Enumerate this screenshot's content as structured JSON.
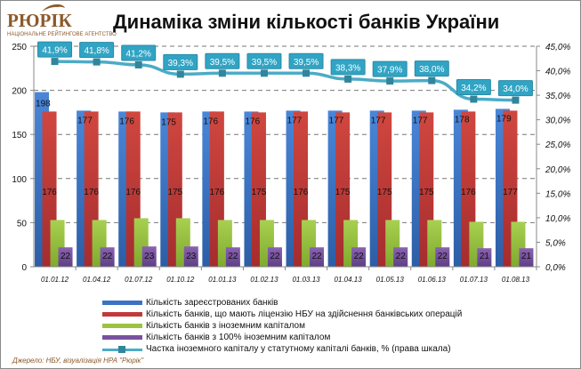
{
  "logo": {
    "name": "РЮРІК",
    "subtitle": "НАЦІОНАЛЬНЕ РЕЙТИНГОВЕ АГЕНТСТВО"
  },
  "source": "Джерело:  НБУ,  візуалізація НРА  \"Рюрік\"",
  "colors": {
    "blue": "#3b73c4",
    "red": "#c0393b",
    "green": "#9bc341",
    "purple": "#7a519f",
    "line": "#4bacc6",
    "label_box": "#31a4c4",
    "logo": "#8c5a2b"
  },
  "chart_data": {
    "type": "bar",
    "title": "Динаміка зміни кількості банків України",
    "categories": [
      "01.01.12",
      "01.04.12",
      "01.07.12",
      "01.10.12",
      "01.01.13",
      "01.02.13",
      "01.03.13",
      "01.04.13",
      "01.05.13",
      "01.06.13",
      "01.07.13",
      "01.08.13"
    ],
    "left_axis": {
      "ylim": [
        0,
        250
      ],
      "ticks": [
        "0",
        "50",
        "100",
        "150",
        "200",
        "250"
      ]
    },
    "right_axis": {
      "ylim": [
        0,
        45
      ],
      "ticks": [
        "0,0%",
        "5,0%",
        "10,0%",
        "15,0%",
        "20,0%",
        "25,0%",
        "30,0%",
        "35,0%",
        "40,0%",
        "45,0%"
      ]
    },
    "grid": true,
    "legend_position": "bottom",
    "series": [
      {
        "name": "Кількість зареєстрованих банків",
        "type": "bar",
        "axis": "left",
        "values": [
          198,
          177,
          176,
          175,
          176,
          176,
          177,
          177,
          177,
          177,
          178,
          179
        ],
        "labels": [
          "198",
          "177",
          "176",
          "175",
          "176",
          "176",
          "177",
          "177",
          "177",
          "177",
          "178",
          "179"
        ]
      },
      {
        "name": "Кількість банків, що мають ліцензію НБУ на здійснення банківських операцій",
        "type": "bar",
        "axis": "left",
        "values": [
          176,
          176,
          176,
          175,
          176,
          175,
          176,
          175,
          175,
          175,
          176,
          177
        ],
        "labels": [
          "176",
          "176",
          "176",
          "175",
          "176",
          "175",
          "176",
          "175",
          "175",
          "175",
          "176",
          "177"
        ]
      },
      {
        "name": "Кількість банків з іноземним капіталом",
        "type": "bar",
        "axis": "left",
        "values": [
          53,
          53,
          55,
          55,
          53,
          53,
          53,
          53,
          53,
          53,
          51,
          51
        ]
      },
      {
        "name": "Кількість банків з 100% іноземним капіталом",
        "type": "bar",
        "axis": "left",
        "values": [
          22,
          22,
          23,
          23,
          22,
          22,
          22,
          22,
          22,
          22,
          21,
          21
        ],
        "labels": [
          "22",
          "22",
          "23",
          "23",
          "22",
          "22",
          "22",
          "22",
          "22",
          "22",
          "21",
          "21"
        ]
      },
      {
        "name": "Частка іноземного капіталу у статутному капіталі банків, % (права шкала)",
        "type": "line",
        "axis": "right",
        "values": [
          41.9,
          41.8,
          41.2,
          39.3,
          39.5,
          39.5,
          39.5,
          38.3,
          37.9,
          38.0,
          34.2,
          34.0
        ],
        "labels": [
          "41,9%",
          "41,8%",
          "41,2%",
          "39,3%",
          "39,5%",
          "39,5%",
          "39,5%",
          "38,3%",
          "37,9%",
          "38,0%",
          "34,2%",
          "34,0%"
        ]
      }
    ]
  }
}
